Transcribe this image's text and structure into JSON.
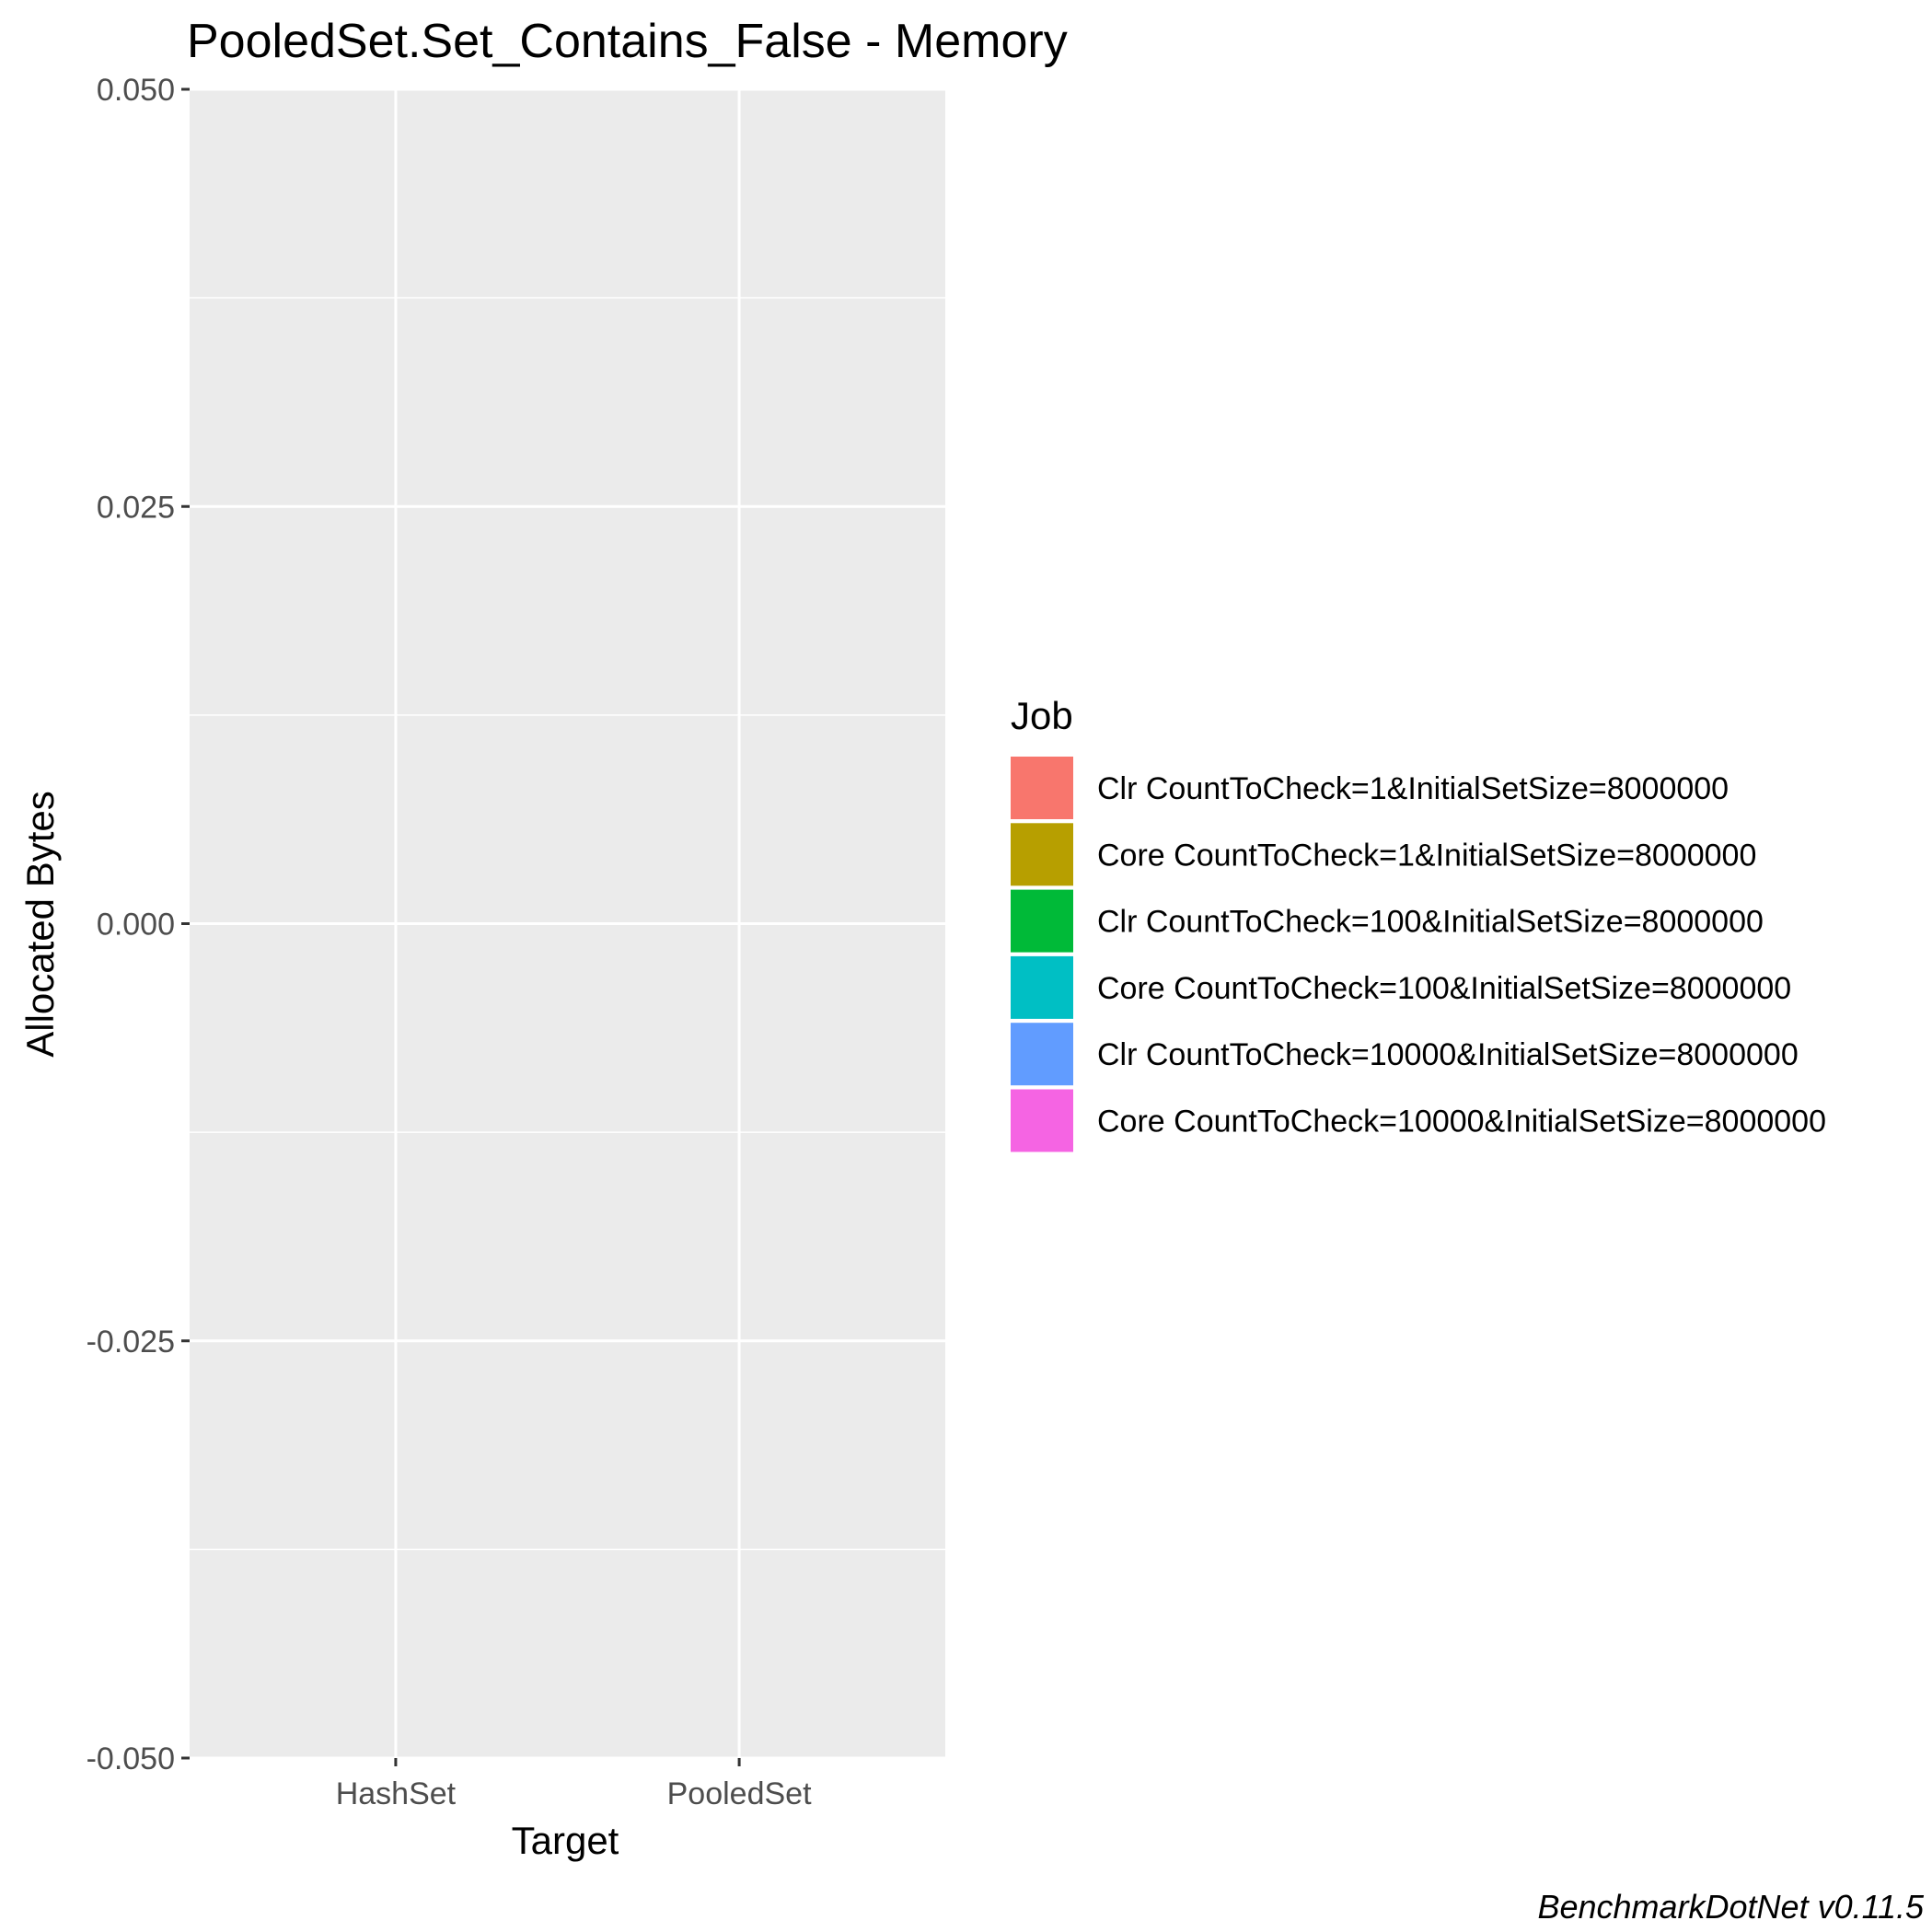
{
  "chart_data": {
    "type": "bar",
    "title": "PooledSet.Set_Contains_False - Memory",
    "xlabel": "Target",
    "ylabel": "Allocated  Bytes",
    "categories": [
      "HashSet",
      "PooledSet"
    ],
    "ylim": [
      -0.05,
      0.05
    ],
    "yticks": [
      -0.05,
      -0.025,
      0,
      0.025,
      0.05
    ],
    "ytick_labels": [
      "-0.050",
      "-0.025",
      "0.000",
      "0.025",
      "0.050"
    ],
    "grid": true,
    "legend": {
      "title": "Job",
      "position": "right",
      "entries": [
        {
          "label": "Clr CountToCheck=1&InitialSetSize=8000000",
          "color": "#F8766D"
        },
        {
          "label": "Core CountToCheck=1&InitialSetSize=8000000",
          "color": "#B79F00"
        },
        {
          "label": "Clr CountToCheck=100&InitialSetSize=8000000",
          "color": "#00BA38"
        },
        {
          "label": "Core CountToCheck=100&InitialSetSize=8000000",
          "color": "#00BFC4"
        },
        {
          "label": "Clr CountToCheck=10000&InitialSetSize=8000000",
          "color": "#619CFF"
        },
        {
          "label": "Core CountToCheck=10000&InitialSetSize=8000000",
          "color": "#F564E3"
        }
      ]
    },
    "series": [
      {
        "name": "Clr CountToCheck=1&InitialSetSize=8000000",
        "values": [
          0,
          0
        ]
      },
      {
        "name": "Core CountToCheck=1&InitialSetSize=8000000",
        "values": [
          0,
          0
        ]
      },
      {
        "name": "Clr CountToCheck=100&InitialSetSize=8000000",
        "values": [
          0,
          0
        ]
      },
      {
        "name": "Core CountToCheck=100&InitialSetSize=8000000",
        "values": [
          0,
          0
        ]
      },
      {
        "name": "Clr CountToCheck=10000&InitialSetSize=8000000",
        "values": [
          0,
          0
        ]
      },
      {
        "name": "Core CountToCheck=10000&InitialSetSize=8000000",
        "values": [
          0,
          0
        ]
      }
    ],
    "caption": "BenchmarkDotNet v0.11.5",
    "colors": {
      "panel": "#EBEBEB",
      "grid": "#FFFFFF",
      "tick": "#333333"
    }
  }
}
